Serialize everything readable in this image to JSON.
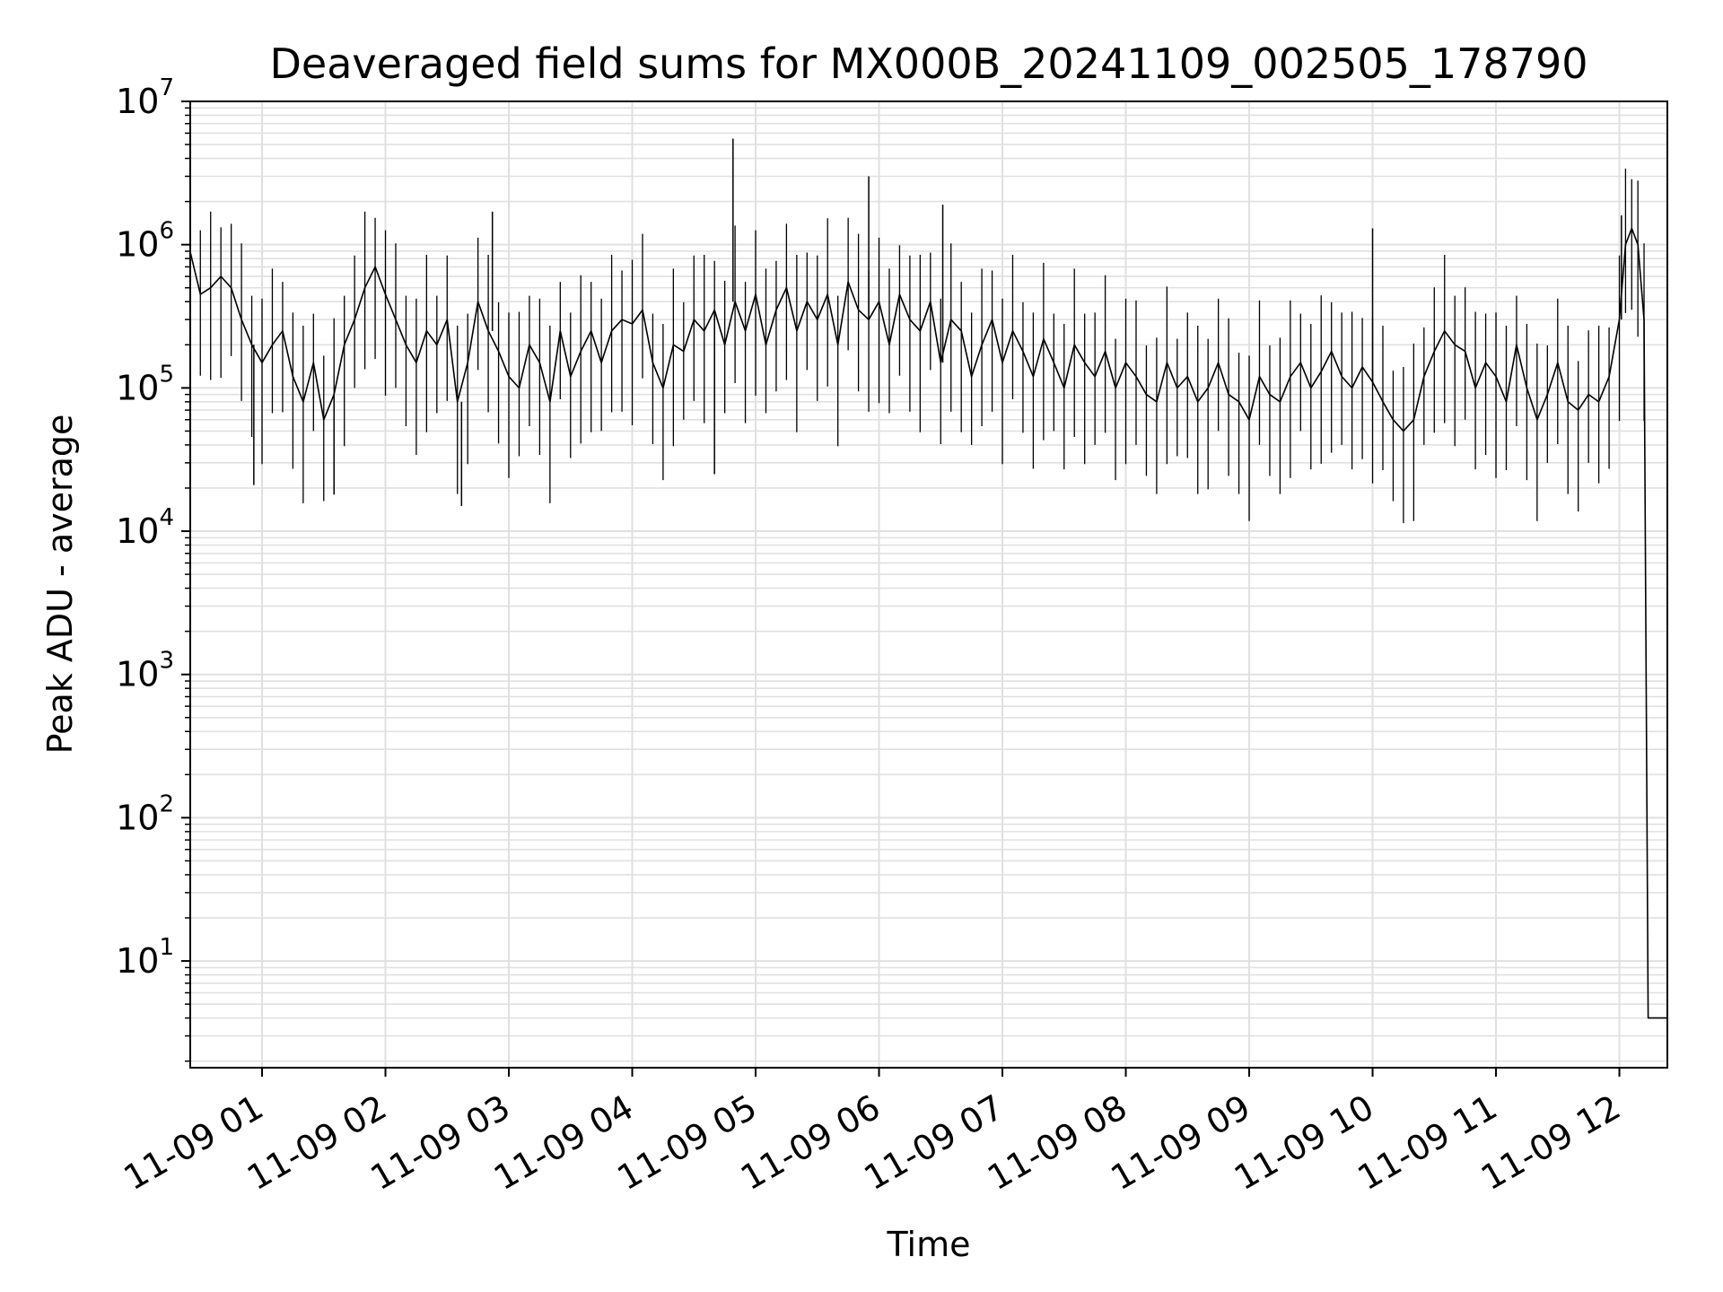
{
  "chart_data": {
    "type": "line",
    "title": "Deaveraged field sums for MX000B_20241109_002505_178790",
    "xlabel": "Time",
    "ylabel": "Peak ADU - average",
    "yscale": "log",
    "ylim": [
      1.8,
      10000000
    ],
    "xlim": [
      "2024-11-09 00:25:05",
      "2024-11-09 12:23:20"
    ],
    "grid": true,
    "line_color": "#000000",
    "grid_color": "#e0e0e0",
    "x_ticks": [
      "2024-11-09 01:00",
      "2024-11-09 02:00",
      "2024-11-09 03:00",
      "2024-11-09 04:00",
      "2024-11-09 05:00",
      "2024-11-09 06:00",
      "2024-11-09 07:00",
      "2024-11-09 08:00",
      "2024-11-09 09:00",
      "2024-11-09 10:00",
      "2024-11-09 11:00",
      "2024-11-09 12:00"
    ],
    "x_tick_labels": [
      "11-09 01",
      "11-09 02",
      "11-09 03",
      "11-09 04",
      "11-09 05",
      "11-09 06",
      "11-09 07",
      "11-09 08",
      "11-09 09",
      "11-09 10",
      "11-09 11",
      "11-09 12"
    ],
    "y_ticks": [
      10,
      100,
      1000,
      10000,
      100000,
      1000000,
      10000000
    ],
    "y_tick_bases": [
      "10",
      "10",
      "10",
      "10",
      "10",
      "10",
      "10"
    ],
    "y_tick_exponents": [
      "1",
      "2",
      "3",
      "4",
      "5",
      "6",
      "7"
    ],
    "series": [
      {
        "x": [
          "2024-11-09 00:25",
          "2024-11-09 00:30",
          "2024-11-09 00:35",
          "2024-11-09 00:40",
          "2024-11-09 00:45",
          "2024-11-09 00:50",
          "2024-11-09 00:55",
          "2024-11-09 01:00",
          "2024-11-09 01:05",
          "2024-11-09 01:10",
          "2024-11-09 01:15",
          "2024-11-09 01:20",
          "2024-11-09 01:25",
          "2024-11-09 01:30",
          "2024-11-09 01:35",
          "2024-11-09 01:40",
          "2024-11-09 01:45",
          "2024-11-09 01:50",
          "2024-11-09 01:55",
          "2024-11-09 02:00",
          "2024-11-09 02:05",
          "2024-11-09 02:10",
          "2024-11-09 02:15",
          "2024-11-09 02:20",
          "2024-11-09 02:25",
          "2024-11-09 02:30",
          "2024-11-09 02:35",
          "2024-11-09 02:40",
          "2024-11-09 02:45",
          "2024-11-09 02:50",
          "2024-11-09 02:55",
          "2024-11-09 03:00",
          "2024-11-09 03:05",
          "2024-11-09 03:10",
          "2024-11-09 03:15",
          "2024-11-09 03:20",
          "2024-11-09 03:25",
          "2024-11-09 03:30",
          "2024-11-09 03:35",
          "2024-11-09 03:40",
          "2024-11-09 03:45",
          "2024-11-09 03:50",
          "2024-11-09 03:55",
          "2024-11-09 04:00",
          "2024-11-09 04:05",
          "2024-11-09 04:10",
          "2024-11-09 04:15",
          "2024-11-09 04:20",
          "2024-11-09 04:25",
          "2024-11-09 04:30",
          "2024-11-09 04:35",
          "2024-11-09 04:40",
          "2024-11-09 04:45",
          "2024-11-09 04:50",
          "2024-11-09 04:55",
          "2024-11-09 05:00",
          "2024-11-09 05:05",
          "2024-11-09 05:10",
          "2024-11-09 05:15",
          "2024-11-09 05:20",
          "2024-11-09 05:25",
          "2024-11-09 05:30",
          "2024-11-09 05:35",
          "2024-11-09 05:40",
          "2024-11-09 05:45",
          "2024-11-09 05:50",
          "2024-11-09 05:55",
          "2024-11-09 06:00",
          "2024-11-09 06:05",
          "2024-11-09 06:10",
          "2024-11-09 06:15",
          "2024-11-09 06:20",
          "2024-11-09 06:25",
          "2024-11-09 06:30",
          "2024-11-09 06:35",
          "2024-11-09 06:40",
          "2024-11-09 06:45",
          "2024-11-09 06:50",
          "2024-11-09 06:55",
          "2024-11-09 07:00",
          "2024-11-09 07:05",
          "2024-11-09 07:10",
          "2024-11-09 07:15",
          "2024-11-09 07:20",
          "2024-11-09 07:25",
          "2024-11-09 07:30",
          "2024-11-09 07:35",
          "2024-11-09 07:40",
          "2024-11-09 07:45",
          "2024-11-09 07:50",
          "2024-11-09 07:55",
          "2024-11-09 08:00",
          "2024-11-09 08:05",
          "2024-11-09 08:10",
          "2024-11-09 08:15",
          "2024-11-09 08:20",
          "2024-11-09 08:25",
          "2024-11-09 08:30",
          "2024-11-09 08:35",
          "2024-11-09 08:40",
          "2024-11-09 08:45",
          "2024-11-09 08:50",
          "2024-11-09 08:55",
          "2024-11-09 09:00",
          "2024-11-09 09:05",
          "2024-11-09 09:10",
          "2024-11-09 09:15",
          "2024-11-09 09:20",
          "2024-11-09 09:25",
          "2024-11-09 09:30",
          "2024-11-09 09:35",
          "2024-11-09 09:40",
          "2024-11-09 09:45",
          "2024-11-09 09:50",
          "2024-11-09 09:55",
          "2024-11-09 10:00",
          "2024-11-09 10:05",
          "2024-11-09 10:10",
          "2024-11-09 10:15",
          "2024-11-09 10:20",
          "2024-11-09 10:25",
          "2024-11-09 10:30",
          "2024-11-09 10:35",
          "2024-11-09 10:40",
          "2024-11-09 10:45",
          "2024-11-09 10:50",
          "2024-11-09 10:55",
          "2024-11-09 11:00",
          "2024-11-09 11:05",
          "2024-11-09 11:10",
          "2024-11-09 11:15",
          "2024-11-09 11:20",
          "2024-11-09 11:25",
          "2024-11-09 11:30",
          "2024-11-09 11:35",
          "2024-11-09 11:40",
          "2024-11-09 11:45",
          "2024-11-09 11:50",
          "2024-11-09 11:55",
          "2024-11-09 12:00",
          "2024-11-09 12:03",
          "2024-11-09 12:06",
          "2024-11-09 12:09",
          "2024-11-09 12:12",
          "2024-11-09 12:14",
          "2024-11-09 12:16",
          "2024-11-09 12:20",
          "2024-11-09 12:23"
        ],
        "values": [
          900000,
          450000,
          500000,
          600000,
          500000,
          300000,
          200000,
          150000,
          200000,
          250000,
          120000,
          80000,
          150000,
          60000,
          90000,
          200000,
          300000,
          500000,
          700000,
          450000,
          300000,
          200000,
          150000,
          250000,
          200000,
          300000,
          80000,
          150000,
          400000,
          250000,
          180000,
          120000,
          100000,
          200000,
          150000,
          80000,
          250000,
          120000,
          180000,
          250000,
          150000,
          250000,
          300000,
          280000,
          350000,
          150000,
          100000,
          200000,
          180000,
          300000,
          250000,
          350000,
          200000,
          400000,
          250000,
          450000,
          200000,
          350000,
          500000,
          250000,
          400000,
          300000,
          450000,
          200000,
          550000,
          350000,
          300000,
          400000,
          200000,
          450000,
          300000,
          250000,
          400000,
          150000,
          300000,
          250000,
          120000,
          200000,
          300000,
          150000,
          250000,
          180000,
          120000,
          220000,
          150000,
          100000,
          200000,
          150000,
          120000,
          180000,
          100000,
          150000,
          120000,
          90000,
          80000,
          150000,
          100000,
          120000,
          80000,
          100000,
          150000,
          90000,
          80000,
          60000,
          120000,
          90000,
          80000,
          120000,
          150000,
          100000,
          130000,
          180000,
          120000,
          100000,
          140000,
          110000,
          80000,
          60000,
          50000,
          60000,
          120000,
          180000,
          250000,
          200000,
          180000,
          100000,
          150000,
          120000,
          80000,
          200000,
          100000,
          60000,
          90000,
          150000,
          80000,
          70000,
          90000,
          80000,
          120000,
          300000,
          1000000,
          1300000,
          1000000,
          300000,
          4,
          4,
          4,
          4
        ],
        "peaks": [
          {
            "x": "2024-11-09 04:49",
            "y": 5500000
          },
          {
            "x": "2024-11-09 05:55",
            "y": 3000000
          },
          {
            "x": "2024-11-09 06:31",
            "y": 1900000
          },
          {
            "x": "2024-11-09 02:52",
            "y": 1700000
          },
          {
            "x": "2024-11-09 10:00",
            "y": 1300000
          },
          {
            "x": "2024-11-09 12:01",
            "y": 1600000
          }
        ],
        "troughs": [
          {
            "x": "2024-11-09 02:37",
            "y": 15000
          },
          {
            "x": "2024-11-09 01:35",
            "y": 18000
          },
          {
            "x": "2024-11-09 00:56",
            "y": 21000
          },
          {
            "x": "2024-11-09 04:40",
            "y": 25000
          }
        ]
      }
    ]
  }
}
